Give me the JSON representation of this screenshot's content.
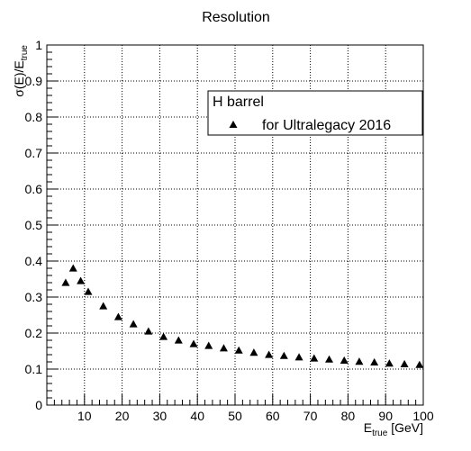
{
  "chart_data": {
    "type": "scatter",
    "title": "Resolution",
    "xlabel": {
      "main": "E",
      "sub": "true",
      "unit": " [GeV]"
    },
    "ylabel": {
      "prefix": "σ(E)/E",
      "sub": "true"
    },
    "xlim": [
      0,
      100
    ],
    "ylim": [
      0,
      1
    ],
    "x_ticks": [
      10,
      20,
      30,
      40,
      50,
      60,
      70,
      80,
      90,
      100
    ],
    "x_tick_labels": [
      "10",
      "20",
      "30",
      "40",
      "50",
      "60",
      "70",
      "80",
      "90",
      "100"
    ],
    "y_ticks": [
      0,
      0.1,
      0.2,
      0.3,
      0.4,
      0.5,
      0.6,
      0.7,
      0.8,
      0.9,
      1
    ],
    "y_tick_labels": [
      "0",
      "0.1",
      "0.2",
      "0.3",
      "0.4",
      "0.5",
      "0.6",
      "0.7",
      "0.8",
      "0.9",
      "1"
    ],
    "grid": true,
    "marker": "triangle-up",
    "marker_color": "#000000",
    "legend": {
      "placement": "top-right",
      "header": "H barrel",
      "entries": [
        "for Ultralegacy 2016"
      ]
    },
    "series": [
      {
        "name": "for Ultralegacy 2016",
        "points": [
          {
            "x": 5,
            "y": 0.34
          },
          {
            "x": 7,
            "y": 0.38
          },
          {
            "x": 9,
            "y": 0.345
          },
          {
            "x": 11,
            "y": 0.315
          },
          {
            "x": 15,
            "y": 0.275
          },
          {
            "x": 19,
            "y": 0.245
          },
          {
            "x": 23,
            "y": 0.225
          },
          {
            "x": 27,
            "y": 0.205
          },
          {
            "x": 31,
            "y": 0.19
          },
          {
            "x": 35,
            "y": 0.18
          },
          {
            "x": 39,
            "y": 0.17
          },
          {
            "x": 43,
            "y": 0.165
          },
          {
            "x": 47,
            "y": 0.158
          },
          {
            "x": 51,
            "y": 0.152
          },
          {
            "x": 55,
            "y": 0.146
          },
          {
            "x": 59,
            "y": 0.14
          },
          {
            "x": 63,
            "y": 0.137
          },
          {
            "x": 67,
            "y": 0.133
          },
          {
            "x": 71,
            "y": 0.13
          },
          {
            "x": 75,
            "y": 0.127
          },
          {
            "x": 79,
            "y": 0.124
          },
          {
            "x": 83,
            "y": 0.121
          },
          {
            "x": 87,
            "y": 0.119
          },
          {
            "x": 91,
            "y": 0.116
          },
          {
            "x": 95,
            "y": 0.114
          },
          {
            "x": 99,
            "y": 0.112
          }
        ]
      }
    ]
  }
}
